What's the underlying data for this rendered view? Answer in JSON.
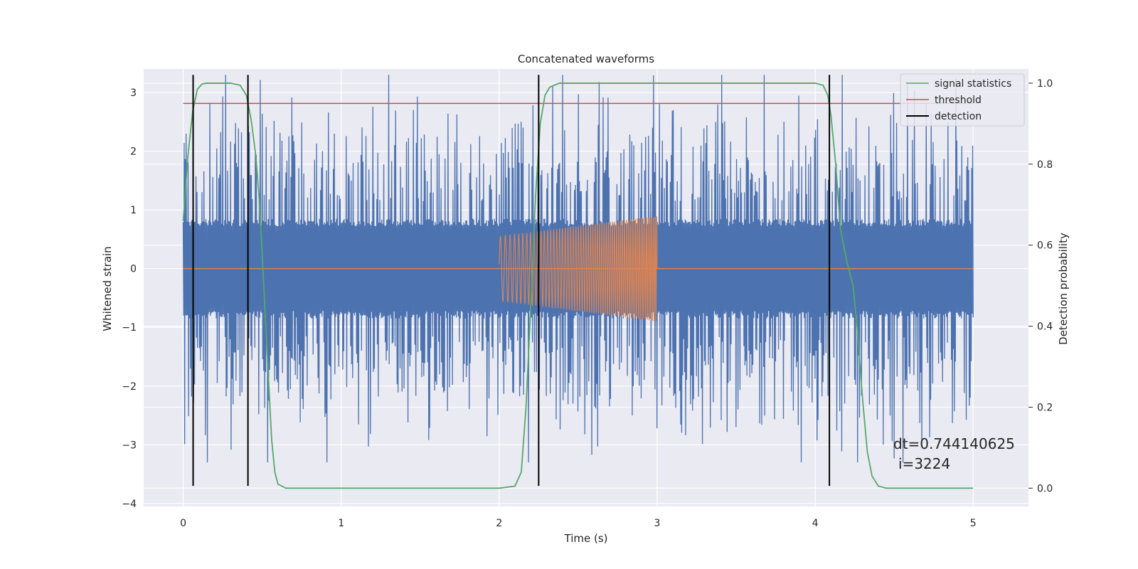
{
  "chart_data": {
    "type": "line",
    "title": "Concatenated waveforms",
    "xlabel": "Time (s)",
    "ylabel": "Whitened strain",
    "y2label": "Detection probability",
    "xlim": [
      -0.25,
      5.35
    ],
    "ylim": [
      -4.05,
      3.4
    ],
    "y2lim": [
      -0.045,
      1.035
    ],
    "x_ticks": [
      0,
      1,
      2,
      3,
      4,
      5
    ],
    "y_ticks": [
      -4,
      -3,
      -2,
      -1,
      0,
      1,
      2,
      3
    ],
    "y2_ticks": [
      0.0,
      0.2,
      0.4,
      0.6,
      0.8,
      1.0
    ],
    "x_tick_labels": [
      "0",
      "1",
      "2",
      "3",
      "4",
      "5"
    ],
    "y_tick_labels": [
      "−4",
      "−3",
      "−2",
      "−1",
      "0",
      "1",
      "2",
      "3"
    ],
    "y2_tick_labels": [
      "0.0",
      "0.2",
      "0.4",
      "0.6",
      "0.8",
      "1.0"
    ],
    "grid": true,
    "legend_position": "top-right",
    "legend": [
      "signal statistics",
      "threshold",
      "detection"
    ],
    "colors": {
      "noise": "#4c72b0",
      "waveform": "#dd8452",
      "statistics": "#55a868",
      "threshold": "#c44e52",
      "detection": "#000000",
      "axes_bg": "#eaeaf2",
      "grid": "#ffffff"
    },
    "series": [
      {
        "name": "signal statistics",
        "axis": "right",
        "x": [
          0.0,
          0.03,
          0.06,
          0.09,
          0.12,
          0.15,
          0.2,
          0.3,
          0.36,
          0.4,
          0.43,
          0.46,
          0.48,
          0.5,
          0.52,
          0.54,
          0.56,
          0.58,
          0.6,
          0.65,
          1.0,
          1.5,
          2.0,
          2.1,
          2.14,
          2.17,
          2.2,
          2.23,
          2.26,
          2.29,
          2.32,
          2.38,
          2.5,
          3.0,
          3.5,
          4.0,
          4.05,
          4.08,
          4.1,
          4.13,
          4.16,
          4.2,
          4.24,
          4.27,
          4.3,
          4.33,
          4.36,
          4.4,
          4.45,
          5.0
        ],
        "values": [
          0.66,
          0.82,
          0.93,
          0.985,
          0.998,
          1.0,
          1.0,
          1.0,
          0.995,
          0.97,
          0.91,
          0.82,
          0.72,
          0.58,
          0.42,
          0.27,
          0.12,
          0.04,
          0.01,
          0.0,
          0.0,
          0.0,
          0.0,
          0.005,
          0.04,
          0.2,
          0.45,
          0.72,
          0.9,
          0.97,
          0.99,
          1.0,
          1.0,
          1.0,
          1.0,
          1.0,
          0.995,
          0.97,
          0.92,
          0.8,
          0.64,
          0.56,
          0.5,
          0.38,
          0.22,
          0.09,
          0.03,
          0.005,
          0.0,
          0.0
        ]
      },
      {
        "name": "threshold",
        "axis": "right",
        "x": [
          0.0,
          5.0
        ],
        "values": [
          0.95,
          0.95
        ]
      },
      {
        "name": "detection",
        "axis": "left",
        "x": [
          0.063,
          0.41,
          2.25,
          4.09
        ],
        "y_range": [
          -3.7,
          3.3
        ]
      }
    ],
    "noise_series": {
      "x_range": [
        0.0,
        5.0
      ],
      "samples": 1600,
      "core_amplitude": 0.85,
      "max_peak": 3.3
    },
    "waveform_series": {
      "x_range": [
        2.0,
        3.0
      ],
      "start_amplitude": 0.55,
      "end_amplitude": 0.9,
      "start_frequency_hz": 30,
      "end_frequency_hz": 95
    },
    "annotations": [
      "dt=0.744140625",
      "i=3224"
    ]
  }
}
